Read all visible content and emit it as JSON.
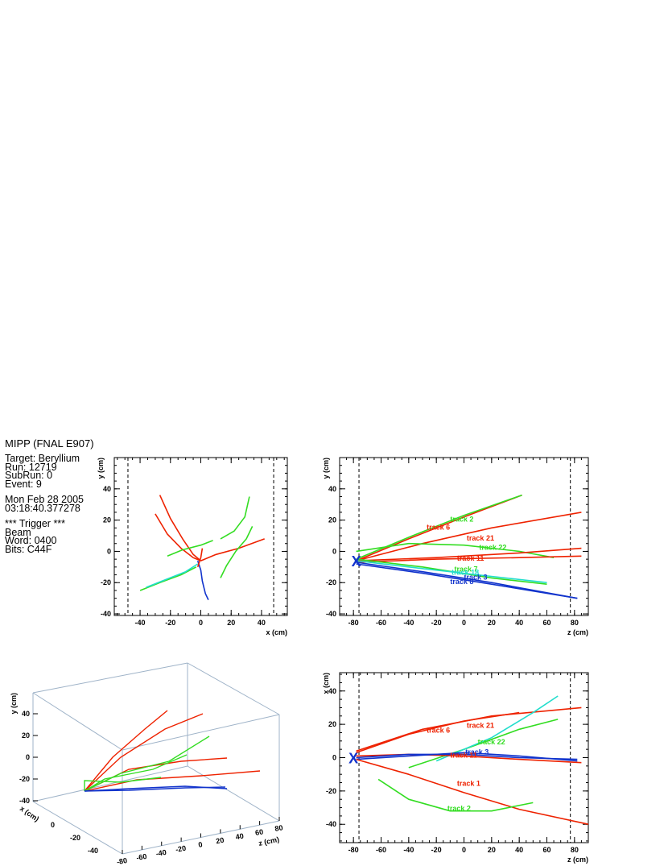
{
  "info": {
    "title": "MIPP (FNAL E907)",
    "lines_a": [
      "Target: Beryllium",
      "Run:   12719",
      "SubRun: 0",
      "Event:  9"
    ],
    "lines_b": [
      "Mon Feb 28 2005",
      "03:18:40.377278"
    ],
    "lines_c": [
      "*** Trigger ***",
      "Beam",
      "Word: 0400",
      "Bits: C44F"
    ]
  },
  "vertex_marker": "X",
  "colors": {
    "red": "#ee2200",
    "green": "#33dd22",
    "blue": "#1133cc",
    "cyan": "#22ddcc",
    "axis": "#000000",
    "box": "#9fb3c8"
  },
  "chart_data": [
    {
      "type": "scatter",
      "name_hint": "xy view",
      "xlabel": "x (cm)",
      "ylabel": "y (cm)",
      "xlim": [
        -57,
        57
      ],
      "ylim": [
        -41,
        60
      ],
      "xticks": [
        -40,
        -20,
        0,
        20,
        40
      ],
      "yticks": [
        -40,
        -20,
        0,
        20,
        40
      ],
      "dashed_x": [
        -48,
        48
      ],
      "tracks": [
        {
          "color": "red",
          "points": [
            [
              -27,
              36
            ],
            [
              -20,
              21
            ],
            [
              -12,
              8
            ],
            [
              -5,
              -2
            ],
            [
              0,
              -6
            ]
          ]
        },
        {
          "color": "red",
          "points": [
            [
              -30,
              24
            ],
            [
              -22,
              11
            ],
            [
              -13,
              2
            ],
            [
              -5,
              -4
            ],
            [
              0,
              -6
            ]
          ]
        },
        {
          "color": "red",
          "points": [
            [
              0,
              -6
            ],
            [
              10,
              -2
            ],
            [
              25,
              2
            ],
            [
              42,
              8
            ]
          ]
        },
        {
          "color": "green",
          "points": [
            [
              -22,
              -3
            ],
            [
              -12,
              1
            ],
            [
              0,
              4
            ],
            [
              8,
              7
            ]
          ]
        },
        {
          "color": "green",
          "points": [
            [
              13,
              -17
            ],
            [
              17,
              -9
            ],
            [
              23,
              0
            ],
            [
              30,
              8
            ],
            [
              34,
              16
            ]
          ]
        },
        {
          "color": "green",
          "points": [
            [
              13,
              8
            ],
            [
              22,
              13
            ],
            [
              29,
              22
            ],
            [
              32,
              35
            ]
          ]
        },
        {
          "color": "green",
          "points": [
            [
              -40,
              -25
            ],
            [
              -27,
              -20
            ],
            [
              -13,
              -15
            ],
            [
              -3,
              -10
            ]
          ]
        },
        {
          "color": "cyan",
          "points": [
            [
              -36,
              -23
            ],
            [
              -23,
              -18
            ],
            [
              -10,
              -13
            ],
            [
              -2,
              -8
            ]
          ]
        },
        {
          "color": "blue",
          "points": [
            [
              -2,
              -6
            ],
            [
              0,
              -12
            ],
            [
              1,
              -19
            ],
            [
              3,
              -27
            ],
            [
              5,
              -31
            ]
          ]
        },
        {
          "color": "red",
          "points": [
            [
              -2,
              -10
            ],
            [
              0,
              -4
            ],
            [
              1,
              2
            ]
          ]
        }
      ]
    },
    {
      "type": "scatter",
      "name_hint": "zy view",
      "xlabel": "z (cm)",
      "ylabel": "y (cm)",
      "xlim": [
        -90,
        90
      ],
      "ylim": [
        -41,
        60
      ],
      "xticks": [
        -80,
        -60,
        -40,
        -20,
        0,
        20,
        40,
        60,
        80
      ],
      "yticks": [
        -40,
        -20,
        0,
        20,
        40
      ],
      "dashed_x": [
        -76,
        77
      ],
      "vertex": [
        -78,
        -6
      ],
      "tracks": [
        {
          "color": "red",
          "points": [
            [
              -78,
              -6
            ],
            [
              -40,
              8
            ],
            [
              0,
              22
            ],
            [
              42,
              36
            ]
          ]
        },
        {
          "color": "green",
          "points": [
            [
              -78,
              -5
            ],
            [
              -40,
              9
            ],
            [
              0,
              23
            ],
            [
              42,
              36
            ]
          ]
        },
        {
          "color": "red",
          "points": [
            [
              -78,
              -6
            ],
            [
              -30,
              5
            ],
            [
              20,
              15
            ],
            [
              85,
              25
            ]
          ]
        },
        {
          "color": "green",
          "points": [
            [
              -78,
              0
            ],
            [
              -40,
              5
            ],
            [
              0,
              4
            ],
            [
              40,
              0
            ],
            [
              65,
              -4
            ]
          ]
        },
        {
          "color": "red",
          "points": [
            [
              -78,
              -6
            ],
            [
              -20,
              -4
            ],
            [
              40,
              -1
            ],
            [
              85,
              2
            ]
          ]
        },
        {
          "color": "red",
          "points": [
            [
              -78,
              -7
            ],
            [
              -20,
              -5
            ],
            [
              40,
              -4
            ],
            [
              85,
              -3
            ]
          ]
        },
        {
          "color": "green",
          "points": [
            [
              -78,
              -5
            ],
            [
              -30,
              -10
            ],
            [
              20,
              -17
            ],
            [
              60,
              -21
            ]
          ]
        },
        {
          "color": "cyan",
          "points": [
            [
              -78,
              -6
            ],
            [
              -30,
              -11
            ],
            [
              20,
              -16
            ],
            [
              60,
              -20
            ]
          ]
        },
        {
          "color": "blue",
          "points": [
            [
              -78,
              -7
            ],
            [
              -30,
              -13
            ],
            [
              20,
              -20
            ],
            [
              82,
              -30
            ]
          ]
        },
        {
          "color": "blue",
          "points": [
            [
              -78,
              -8
            ],
            [
              -30,
              -14
            ],
            [
              20,
              -21
            ],
            [
              82,
              -30
            ]
          ]
        }
      ],
      "labels": [
        {
          "text": "track 2",
          "color": "green",
          "at": [
            -10,
            19
          ]
        },
        {
          "text": "track 6",
          "color": "red",
          "at": [
            -27,
            14
          ]
        },
        {
          "text": "track 21",
          "color": "red",
          "at": [
            2,
            7
          ]
        },
        {
          "text": "track 22",
          "color": "green",
          "at": [
            11,
            1
          ]
        },
        {
          "text": "track 11",
          "color": "red",
          "at": [
            -5,
            -6
          ]
        },
        {
          "text": "track 7",
          "color": "green",
          "at": [
            -7,
            -13
          ]
        },
        {
          "text": "track 18",
          "color": "cyan",
          "at": [
            -9,
            -15
          ]
        },
        {
          "text": "track 3",
          "color": "blue",
          "at": [
            0,
            -18
          ]
        },
        {
          "text": "track 8",
          "color": "blue",
          "at": [
            -10,
            -21
          ]
        }
      ]
    },
    {
      "type": "scatter",
      "name_hint": "3d view",
      "xlabel": "x (cm)",
      "ylabel": "y (cm)",
      "zlabel": "z (cm)",
      "yticks": [
        -40,
        -20,
        0,
        20,
        40
      ],
      "xticks": [
        20,
        0,
        -20,
        -40
      ],
      "zticks": [
        -80,
        -60,
        -40,
        -20,
        0,
        20,
        40,
        60,
        80
      ]
    },
    {
      "type": "scatter",
      "name_hint": "zx view",
      "xlabel": "z (cm)",
      "ylabel": "x (cm)",
      "xlim": [
        -90,
        90
      ],
      "ylim": [
        -51,
        51
      ],
      "xticks": [
        -80,
        -60,
        -40,
        -20,
        0,
        20,
        40,
        60,
        80
      ],
      "yticks": [
        -40,
        -20,
        0,
        20,
        40
      ],
      "dashed_x": [
        -76,
        77
      ],
      "vertex": [
        -80,
        0
      ],
      "tracks": [
        {
          "color": "red",
          "points": [
            [
              -78,
              3
            ],
            [
              -40,
              14
            ],
            [
              0,
              22
            ],
            [
              40,
              27
            ]
          ]
        },
        {
          "color": "red",
          "points": [
            [
              -78,
              4
            ],
            [
              -30,
              17
            ],
            [
              20,
              25
            ],
            [
              85,
              30
            ]
          ]
        },
        {
          "color": "green",
          "points": [
            [
              -40,
              -6
            ],
            [
              0,
              5
            ],
            [
              40,
              17
            ],
            [
              68,
              23
            ]
          ]
        },
        {
          "color": "cyan",
          "points": [
            [
              -20,
              -2
            ],
            [
              20,
              12
            ],
            [
              50,
              27
            ],
            [
              68,
              37
            ]
          ]
        },
        {
          "color": "red",
          "points": [
            [
              -78,
              1
            ],
            [
              -40,
              2
            ],
            [
              0,
              1
            ],
            [
              40,
              -1
            ],
            [
              85,
              -3
            ]
          ]
        },
        {
          "color": "blue",
          "points": [
            [
              -78,
              0
            ],
            [
              -40,
              2
            ],
            [
              0,
              2
            ],
            [
              40,
              0
            ],
            [
              82,
              -1
            ]
          ]
        },
        {
          "color": "blue",
          "points": [
            [
              -78,
              -1
            ],
            [
              -40,
              1
            ],
            [
              0,
              3
            ],
            [
              40,
              1
            ],
            [
              82,
              -2
            ]
          ]
        },
        {
          "color": "red",
          "points": [
            [
              -78,
              -1
            ],
            [
              -40,
              -10
            ],
            [
              0,
              -21
            ],
            [
              40,
              -31
            ],
            [
              90,
              -40
            ]
          ]
        },
        {
          "color": "green",
          "points": [
            [
              -62,
              -13
            ],
            [
              -40,
              -25
            ],
            [
              -10,
              -32
            ],
            [
              20,
              -32
            ],
            [
              50,
              -27
            ]
          ]
        }
      ],
      "labels": [
        {
          "text": "track 21",
          "color": "red",
          "at": [
            2,
            18
          ]
        },
        {
          "text": "track 6",
          "color": "red",
          "at": [
            -27,
            15
          ]
        },
        {
          "text": "track 22",
          "color": "green",
          "at": [
            10,
            8
          ]
        },
        {
          "text": "track 3",
          "color": "blue",
          "at": [
            1,
            2
          ]
        },
        {
          "text": "track 11",
          "color": "red",
          "at": [
            -10,
            0
          ]
        },
        {
          "text": "track 1",
          "color": "red",
          "at": [
            -5,
            -17
          ]
        },
        {
          "text": "track 2",
          "color": "green",
          "at": [
            -12,
            -32
          ]
        }
      ]
    }
  ]
}
